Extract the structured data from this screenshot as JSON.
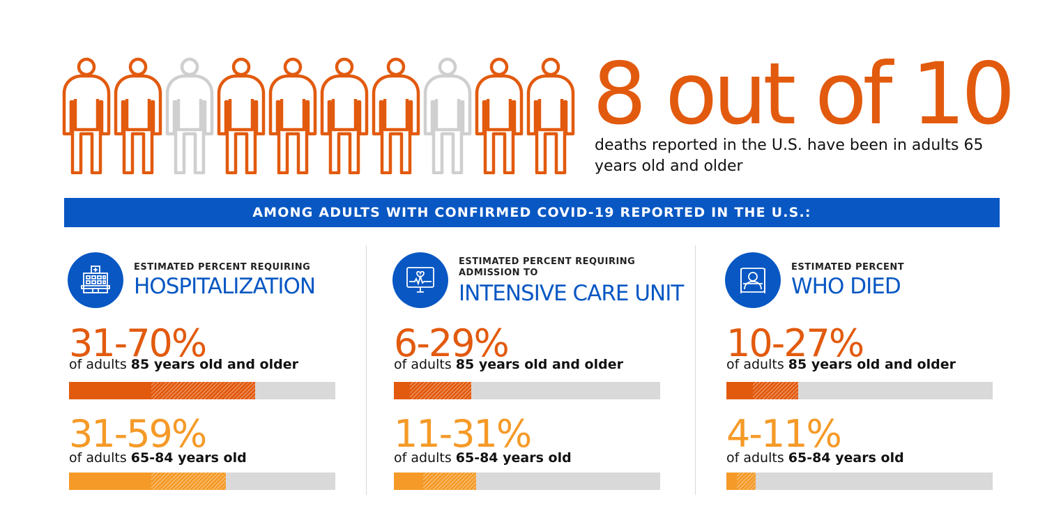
{
  "colors": {
    "orange_dark": "#e25a0e",
    "orange_light": "#f59a28",
    "blue": "#0857c3",
    "gray": "#d9d9d9",
    "person_gray": "#cfcfcf"
  },
  "pictogram": {
    "total": 10,
    "highlighted": 8,
    "states": [
      "orange",
      "orange",
      "gray",
      "orange",
      "orange",
      "orange",
      "orange",
      "gray",
      "orange",
      "orange"
    ]
  },
  "headline": "8 out of 10",
  "subline": "deaths reported in the U.S. have been in adults 65 years old and older",
  "banner": "AMONG ADULTS WITH CONFIRMED COVID-19 REPORTED IN THE U.S.:",
  "chart_data": {
    "type": "bar",
    "unit": "%",
    "groups": [
      {
        "icon": "hospital-icon",
        "subtitle": "ESTIMATED PERCENT REQUIRING",
        "title": "HOSPITALIZATION",
        "rows": [
          {
            "range": "31-70%",
            "desc_prefix": "of adults ",
            "desc_bold": "85 years old and older",
            "low": 31,
            "high": 70
          },
          {
            "range": "31-59%",
            "desc_prefix": "of adults ",
            "desc_bold": "65-84 years old",
            "low": 31,
            "high": 59
          }
        ]
      },
      {
        "icon": "heart-monitor-icon",
        "subtitle": "ESTIMATED PERCENT REQUIRING\nADMISSION TO",
        "title": "INTENSIVE CARE UNIT",
        "rows": [
          {
            "range": "6-29%",
            "desc_prefix": "of adults ",
            "desc_bold": "85 years old and older",
            "low": 6,
            "high": 29
          },
          {
            "range": "11-31%",
            "desc_prefix": "of adults ",
            "desc_bold": "65-84 years old",
            "low": 11,
            "high": 31
          }
        ]
      },
      {
        "icon": "patient-bed-icon",
        "subtitle": "ESTIMATED PERCENT",
        "title": "WHO DIED",
        "rows": [
          {
            "range": "10-27%",
            "desc_prefix": "of adults ",
            "desc_bold": "85 years old and older",
            "low": 10,
            "high": 27
          },
          {
            "range": "4-11%",
            "desc_prefix": "of adults ",
            "desc_bold": "65-84 years old",
            "low": 4,
            "high": 11
          }
        ]
      }
    ]
  }
}
